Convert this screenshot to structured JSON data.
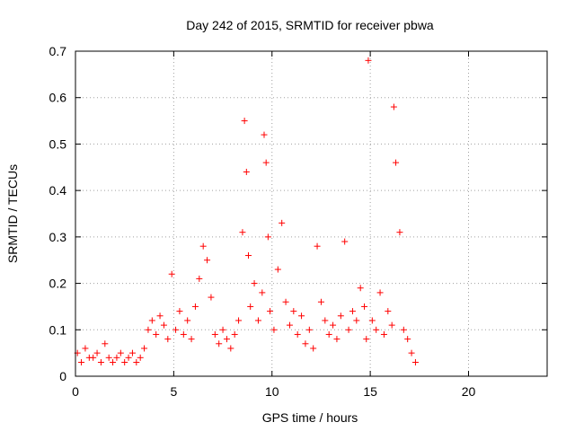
{
  "chart_data": {
    "type": "scatter",
    "title": "Day 242 of 2015, SRMTID for receiver pbwa",
    "xlabel": "GPS time / hours",
    "ylabel": "SRMTID / TECUs",
    "xlim": [
      0,
      24
    ],
    "ylim": [
      0,
      0.7
    ],
    "xticks": [
      "0",
      "5",
      "10",
      "15",
      "20"
    ],
    "xtick_values": [
      0,
      5,
      10,
      15,
      20
    ],
    "yticks": [
      "0",
      "0.1",
      "0.2",
      "0.3",
      "0.4",
      "0.5",
      "0.6",
      "0.7"
    ],
    "ytick_values": [
      0,
      0.1,
      0.2,
      0.3,
      0.4,
      0.5,
      0.6,
      0.7
    ],
    "grid": true,
    "marker": "+",
    "marker_color": "#ff0000",
    "series": [
      {
        "name": "SRMTID",
        "x": [
          0.1,
          0.3,
          0.5,
          0.7,
          0.9,
          1.1,
          1.3,
          1.5,
          1.7,
          1.9,
          2.1,
          2.3,
          2.5,
          2.7,
          2.9,
          3.1,
          3.3,
          3.5,
          3.7,
          3.9,
          4.1,
          4.3,
          4.5,
          4.7,
          4.9,
          5.1,
          5.3,
          5.5,
          5.7,
          5.9,
          6.1,
          6.3,
          6.5,
          6.7,
          6.9,
          7.1,
          7.3,
          7.5,
          7.7,
          7.9,
          8.1,
          8.3,
          8.5,
          8.6,
          8.7,
          8.8,
          8.9,
          9.1,
          9.3,
          9.5,
          9.6,
          9.7,
          9.8,
          9.9,
          10.1,
          10.3,
          10.5,
          10.7,
          10.9,
          11.1,
          11.3,
          11.5,
          11.7,
          11.9,
          12.1,
          12.3,
          12.5,
          12.7,
          12.9,
          13.1,
          13.3,
          13.5,
          13.7,
          13.9,
          14.1,
          14.3,
          14.5,
          14.7,
          14.8,
          14.9,
          15.1,
          15.3,
          15.5,
          15.7,
          15.9,
          16.1,
          16.2,
          16.3,
          16.5,
          16.7,
          16.9,
          17.1,
          17.3
        ],
        "y": [
          0.05,
          0.03,
          0.06,
          0.04,
          0.04,
          0.05,
          0.03,
          0.07,
          0.04,
          0.03,
          0.04,
          0.05,
          0.03,
          0.04,
          0.05,
          0.03,
          0.04,
          0.06,
          0.1,
          0.12,
          0.09,
          0.13,
          0.11,
          0.08,
          0.22,
          0.1,
          0.14,
          0.09,
          0.12,
          0.08,
          0.15,
          0.21,
          0.28,
          0.25,
          0.17,
          0.09,
          0.07,
          0.1,
          0.08,
          0.06,
          0.09,
          0.12,
          0.31,
          0.55,
          0.44,
          0.26,
          0.15,
          0.2,
          0.12,
          0.18,
          0.52,
          0.46,
          0.3,
          0.14,
          0.1,
          0.23,
          0.33,
          0.16,
          0.11,
          0.14,
          0.09,
          0.13,
          0.07,
          0.1,
          0.06,
          0.28,
          0.16,
          0.12,
          0.09,
          0.11,
          0.08,
          0.13,
          0.29,
          0.1,
          0.14,
          0.12,
          0.19,
          0.15,
          0.08,
          0.68,
          0.12,
          0.1,
          0.18,
          0.09,
          0.14,
          0.11,
          0.58,
          0.46,
          0.31,
          0.1,
          0.08,
          0.05,
          0.03
        ]
      }
    ]
  }
}
